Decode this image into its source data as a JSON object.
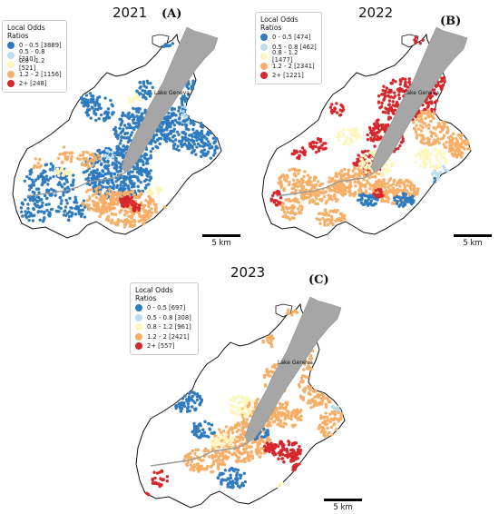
{
  "legend_title": "Local Odds Ratios",
  "scale_label": "5 km",
  "lake_label": "Lake Geneva",
  "colors": {
    "c0": "#2f7bbf",
    "c1": "#b9dcef",
    "c2": "#fff6bd",
    "c3": "#f7ae66",
    "c4": "#d7262c",
    "lake": "#a6a6a6"
  },
  "panels": [
    {
      "year": "2021",
      "label": "(A)",
      "legend": [
        "0 - 0.5 [3889]",
        "0.5 - 0.8 [310]",
        "0.8 - 1.2 [521]",
        "1.2 - 2 [1156]",
        "2+ [248]"
      ]
    },
    {
      "year": "2022",
      "label": "(B)",
      "legend": [
        "0 - 0.5 [474]",
        "0.5 - 0.8 [462]",
        "0.8 - 1.2 [1477]",
        "1.2 - 2 [2341]",
        "2+ [1221]"
      ]
    },
    {
      "year": "2023",
      "label": "(C)",
      "legend": [
        "0 - 0.5 [697]",
        "0.5 - 0.8 [308]",
        "0.8 - 1.2 [961]",
        "1.2 - 2 [2421]",
        "2+ [557]"
      ]
    }
  ]
}
